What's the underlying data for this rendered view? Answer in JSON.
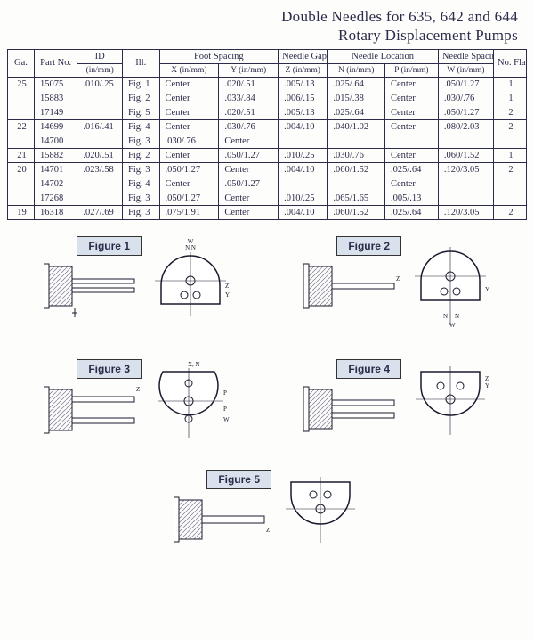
{
  "title_line1": "Double Needles for 635, 642 and 644",
  "title_line2": "Rotary Displacement Pumps",
  "columns": {
    "ga": "Ga.",
    "part": "Part No.",
    "id": "ID",
    "id_sub": "(in/mm)",
    "ill": "Ill.",
    "foot": "Foot Spacing",
    "foot_x": "X (in/mm)",
    "foot_y": "Y (in/mm)",
    "gap": "Needle Gap",
    "gap_z": "Z (in/mm)",
    "loc": "Needle Location",
    "loc_n": "N (in/mm)",
    "loc_p": "P (in/mm)",
    "spc": "Needle Spacing",
    "spc_w": "W (in/mm)",
    "flats": "No. Flats"
  },
  "rows": [
    {
      "ga": "25",
      "part": "15075",
      "id": ".010/.25",
      "ill": "Fig. 1",
      "x": "Center",
      "y": ".020/.51",
      "z": ".005/.13",
      "n": ".025/.64",
      "p": "Center",
      "w": ".050/1.27",
      "flats": "1"
    },
    {
      "ga": "",
      "part": "15883",
      "id": "",
      "ill": "Fig. 2",
      "x": "Center",
      "y": ".033/.84",
      "z": ".006/.15",
      "n": ".015/.38",
      "p": "Center",
      "w": ".030/.76",
      "flats": "1"
    },
    {
      "ga": "",
      "part": "17149",
      "id": "",
      "ill": "Fig. 5",
      "x": "Center",
      "y": ".020/.51",
      "z": ".005/.13",
      "n": ".025/.64",
      "p": "Center",
      "w": ".050/1.27",
      "flats": "2"
    },
    {
      "ga": "22",
      "part": "14699",
      "id": ".016/.41",
      "ill": "Fig. 4",
      "x": "Center",
      "y": ".030/.76",
      "z": ".004/.10",
      "n": ".040/1.02",
      "p": "Center",
      "w": ".080/2.03",
      "flats": "2"
    },
    {
      "ga": "",
      "part": "14700",
      "id": "",
      "ill": "Fig. 3",
      "x": ".030/.76",
      "y": "Center",
      "z": "",
      "n": "",
      "p": "",
      "w": "",
      "flats": ""
    },
    {
      "ga": "21",
      "part": "15882",
      "id": ".020/.51",
      "ill": "Fig. 2",
      "x": "Center",
      "y": ".050/1.27",
      "z": ".010/.25",
      "n": ".030/.76",
      "p": "Center",
      "w": ".060/1.52",
      "flats": "1"
    },
    {
      "ga": "20",
      "part": "14701",
      "id": ".023/.58",
      "ill": "Fig. 3",
      "x": ".050/1.27",
      "y": "Center",
      "z": ".004/.10",
      "n": ".060/1.52",
      "p": ".025/.64",
      "w": ".120/3.05",
      "flats": "2"
    },
    {
      "ga": "",
      "part": "14702",
      "id": "",
      "ill": "Fig. 4",
      "x": "Center",
      "y": ".050/1.27",
      "z": "",
      "n": "",
      "p": "Center",
      "w": "",
      "flats": ""
    },
    {
      "ga": "",
      "part": "17268",
      "id": "",
      "ill": "Fig. 3",
      "x": ".050/1.27",
      "y": "Center",
      "z": ".010/.25",
      "n": ".065/1.65",
      "p": ".005/.13",
      "w": "",
      "flats": ""
    },
    {
      "ga": "19",
      "part": "16318",
      "id": ".027/.69",
      "ill": "Fig. 3",
      "x": ".075/1.91",
      "y": "Center",
      "z": ".004/.10",
      "n": ".060/1.52",
      "p": ".025/.64",
      "w": ".120/3.05",
      "flats": "2"
    }
  ],
  "group_breaks": [
    3,
    5,
    6,
    9
  ],
  "figures": {
    "f1": "Figure 1",
    "f2": "Figure 2",
    "f3": "Figure 3",
    "f4": "Figure 4",
    "f5": "Figure 5"
  },
  "style": {
    "text_color": "#2b2b4a",
    "label_bg": "#d9e2ec",
    "hatch": "#8a8aa0",
    "outline": "#1a1a2e",
    "dim_fontsize": 7
  }
}
